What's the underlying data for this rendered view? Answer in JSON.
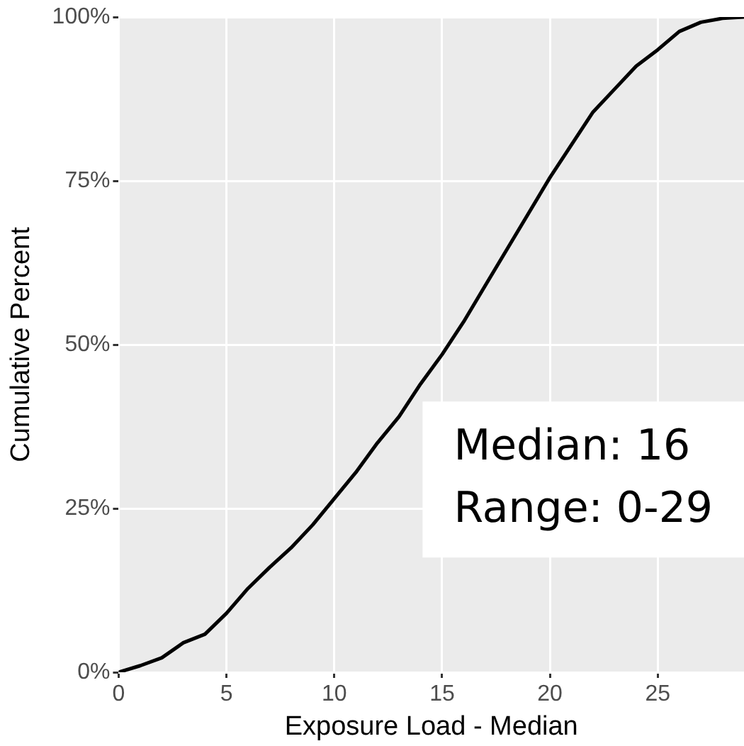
{
  "chart_data": {
    "type": "line",
    "xlabel": "Exposure Load - Median",
    "ylabel": "Cumulative Percent",
    "x": [
      0,
      1,
      2,
      3,
      4,
      5,
      6,
      7,
      8,
      9,
      10,
      11,
      12,
      13,
      14,
      15,
      16,
      17,
      18,
      19,
      20,
      21,
      22,
      23,
      24,
      25,
      26,
      27,
      28,
      29
    ],
    "series": [
      {
        "color": "#000000",
        "values": [
          0,
          1,
          2.2,
          4.5,
          5.8,
          9,
          12.8,
          16,
          19,
          22.5,
          26.5,
          30.5,
          35,
          39,
          44,
          48.5,
          53.5,
          59,
          64.5,
          70,
          75.5,
          80.5,
          85.5,
          89,
          92.5,
          95,
          97.8,
          99.2,
          99.8,
          100
        ]
      }
    ],
    "xlim": [
      0,
      29
    ],
    "xticks": [
      0,
      5,
      10,
      15,
      20,
      25
    ],
    "ylim": [
      0,
      100
    ],
    "yticks": [
      {
        "value": 0,
        "label": "0%"
      },
      {
        "value": 25,
        "label": "25%"
      },
      {
        "value": 50,
        "label": "50%"
      },
      {
        "value": 75,
        "label": "75%"
      },
      {
        "value": 100,
        "label": "100%"
      }
    ],
    "grid": true,
    "legend": false,
    "marker": "none",
    "line_style": "solid",
    "annotations": [
      "Median: 16",
      "Range: 0-29"
    ]
  }
}
